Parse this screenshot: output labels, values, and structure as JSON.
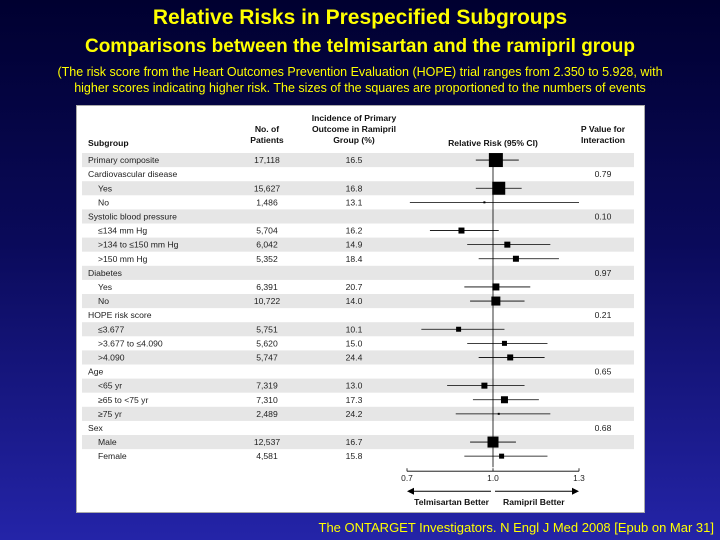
{
  "slide": {
    "title": "Relative Risks in Prespecified Subgroups",
    "subtitle": "Comparisons between the telmisartan and the ramipril group",
    "note_line1": "(The risk score from the Heart Outcomes Prevention Evaluation (HOPE) trial ranges from 2.350 to 5.928, with",
    "note_line2": "higher scores indicating higher risk. The sizes of the squares are proportioned to the numbers of events",
    "citation": "The ONTARGET Investigators. N Engl J Med 2008 [Epub on Mar 31]"
  },
  "colors": {
    "background_top": "#000030",
    "background_bottom": "#2424a8",
    "title": "#ffff00",
    "row_shade": "#e6e6e6",
    "marker": "#000000"
  },
  "chart_data": {
    "type": "forest",
    "headers": {
      "subgroup": "Subgroup",
      "patients": [
        "No. of",
        "Patients"
      ],
      "incidence": [
        "Incidence of Primary",
        "Outcome in Ramipril",
        "Group (%)"
      ],
      "rr": "Relative Risk (95% CI)",
      "pval": [
        "P Value for",
        "Interaction"
      ]
    },
    "x_axis": {
      "min": 0.7,
      "max": 1.3,
      "ticks": [
        "0.7",
        "1.0",
        "1.3"
      ],
      "ref": 1.0
    },
    "left_label": "Telmisartan Better",
    "right_label": "Ramipril Better",
    "rows": [
      {
        "label": "Primary composite",
        "indent": false,
        "n": "17,118",
        "inc": "16.5",
        "p": "",
        "rr": 1.01,
        "lo": 0.94,
        "hi": 1.09,
        "size": 14
      },
      {
        "label": "Cardiovascular disease",
        "indent": false,
        "n": "",
        "inc": "",
        "p": "0.79"
      },
      {
        "label": "Yes",
        "indent": true,
        "n": "15,627",
        "inc": "16.8",
        "p": "",
        "rr": 1.02,
        "lo": 0.94,
        "hi": 1.1,
        "size": 13
      },
      {
        "label": "No",
        "indent": true,
        "n": "1,486",
        "inc": "13.1",
        "p": "",
        "rr": 0.97,
        "lo": 0.71,
        "hi": 1.31,
        "size": 2
      },
      {
        "label": "Systolic blood pressure",
        "indent": false,
        "n": "",
        "inc": "",
        "p": "0.10"
      },
      {
        "label": "≤134 mm Hg",
        "indent": true,
        "n": "5,704",
        "inc": "16.2",
        "p": "",
        "rr": 0.89,
        "lo": 0.78,
        "hi": 1.02,
        "size": 6
      },
      {
        "label": ">134 to ≤150 mm Hg",
        "indent": true,
        "n": "6,042",
        "inc": "14.9",
        "p": "",
        "rr": 1.05,
        "lo": 0.91,
        "hi": 1.2,
        "size": 6
      },
      {
        "label": ">150 mm Hg",
        "indent": true,
        "n": "5,352",
        "inc": "18.4",
        "p": "",
        "rr": 1.08,
        "lo": 0.95,
        "hi": 1.23,
        "size": 6
      },
      {
        "label": "Diabetes",
        "indent": false,
        "n": "",
        "inc": "",
        "p": "0.97"
      },
      {
        "label": "Yes",
        "indent": true,
        "n": "6,391",
        "inc": "20.7",
        "p": "",
        "rr": 1.01,
        "lo": 0.9,
        "hi": 1.13,
        "size": 7
      },
      {
        "label": "No",
        "indent": true,
        "n": "10,722",
        "inc": "14.0",
        "p": "",
        "rr": 1.01,
        "lo": 0.92,
        "hi": 1.11,
        "size": 9
      },
      {
        "label": "HOPE risk score",
        "indent": false,
        "n": "",
        "inc": "",
        "p": "0.21"
      },
      {
        "label": "≤3.677",
        "indent": true,
        "n": "5,751",
        "inc": "10.1",
        "p": "",
        "rr": 0.88,
        "lo": 0.75,
        "hi": 1.04,
        "size": 5
      },
      {
        "label": ">3.677 to ≤4.090",
        "indent": true,
        "n": "5,620",
        "inc": "15.0",
        "p": "",
        "rr": 1.04,
        "lo": 0.91,
        "hi": 1.19,
        "size": 5
      },
      {
        "label": ">4.090",
        "indent": true,
        "n": "5,747",
        "inc": "24.4",
        "p": "",
        "rr": 1.06,
        "lo": 0.95,
        "hi": 1.18,
        "size": 6
      },
      {
        "label": "Age",
        "indent": false,
        "n": "",
        "inc": "",
        "p": "0.65"
      },
      {
        "label": "<65 yr",
        "indent": true,
        "n": "7,319",
        "inc": "13.0",
        "p": "",
        "rr": 0.97,
        "lo": 0.84,
        "hi": 1.11,
        "size": 6
      },
      {
        "label": "≥65 to <75 yr",
        "indent": true,
        "n": "7,310",
        "inc": "17.3",
        "p": "",
        "rr": 1.04,
        "lo": 0.93,
        "hi": 1.16,
        "size": 7
      },
      {
        "label": "≥75 yr",
        "indent": true,
        "n": "2,489",
        "inc": "24.2",
        "p": "",
        "rr": 1.02,
        "lo": 0.87,
        "hi": 1.2,
        "size": 2
      },
      {
        "label": "Sex",
        "indent": false,
        "n": "",
        "inc": "",
        "p": "0.68"
      },
      {
        "label": "Male",
        "indent": true,
        "n": "12,537",
        "inc": "16.7",
        "p": "",
        "rr": 1.0,
        "lo": 0.92,
        "hi": 1.08,
        "size": 11
      },
      {
        "label": "Female",
        "indent": true,
        "n": "4,581",
        "inc": "15.8",
        "p": "",
        "rr": 1.03,
        "lo": 0.9,
        "hi": 1.19,
        "size": 5
      }
    ]
  }
}
